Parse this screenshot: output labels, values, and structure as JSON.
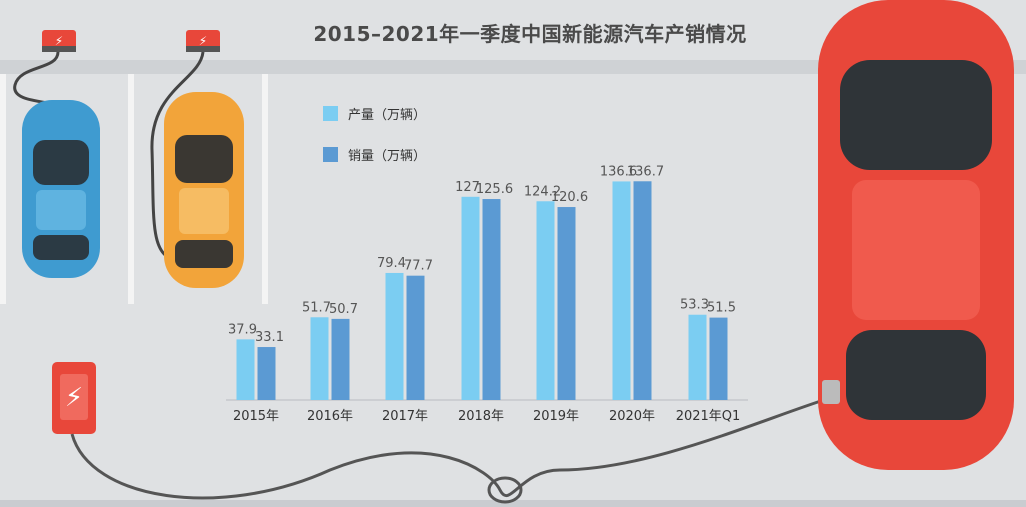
{
  "colors": {
    "background": "#dfe1e3",
    "production": "#7bcdf2",
    "sales": "#5b9ad3",
    "car_red": "#e8473a",
    "car_blue": "#3f9bd0",
    "car_yellow": "#f2a43a"
  },
  "chart_data": {
    "type": "bar",
    "title": "2015–2021年一季度中国新能源汽车产销情况",
    "categories": [
      "2015年",
      "2016年",
      "2017年",
      "2018年",
      "2019年",
      "2020年",
      "2021年Q1"
    ],
    "series": [
      {
        "name": "产量（万辆）",
        "values": [
          37.9,
          51.7,
          79.4,
          127,
          124.2,
          136.6,
          53.3
        ]
      },
      {
        "name": "销量（万辆）",
        "values": [
          33.1,
          50.7,
          77.7,
          125.6,
          120.6,
          136.7,
          51.5
        ]
      }
    ],
    "value_labels": [
      [
        "37.9",
        "51.7",
        "79.4",
        "127",
        "124.2",
        "136.6",
        "53.3"
      ],
      [
        "33.1",
        "50.7",
        "77.7",
        "125.6",
        "120.6",
        "136.7",
        "51.5"
      ]
    ],
    "legend_position": "top-left",
    "grid": false
  },
  "icons": [
    "charger-icon",
    "lightning-icon",
    "car-icon"
  ]
}
